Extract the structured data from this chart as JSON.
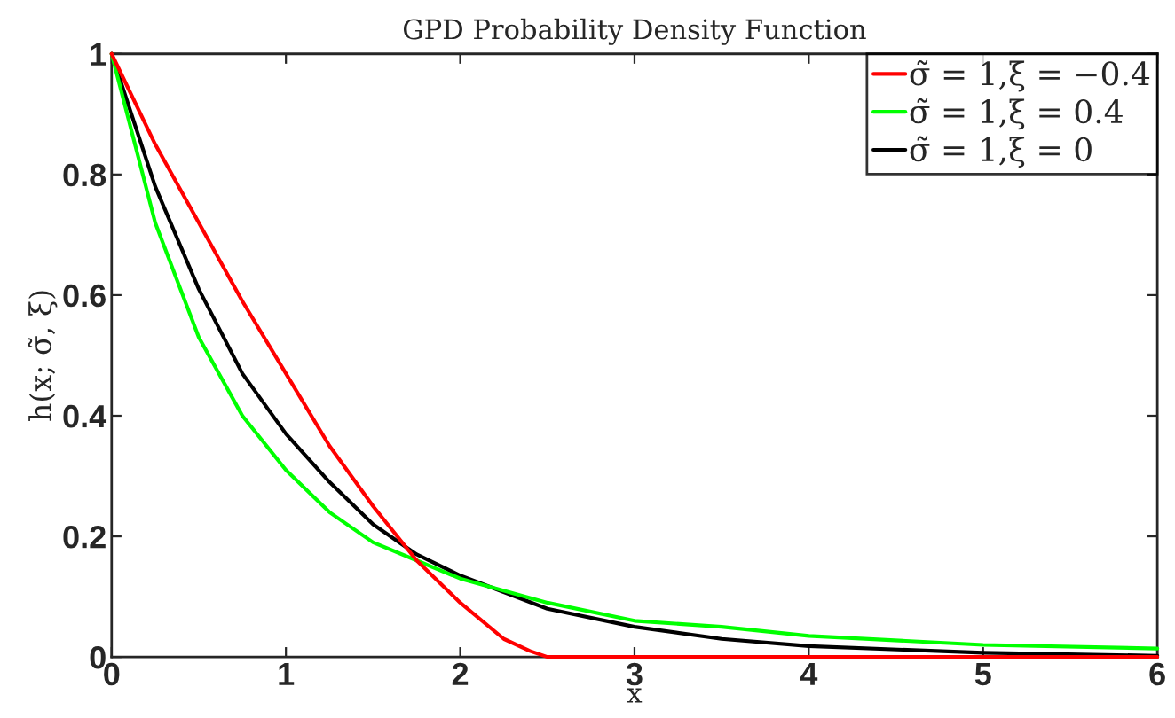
{
  "chart_data": {
    "type": "line",
    "title": "GPD Probability Density Function",
    "xlabel": "x",
    "ylabel": "h(x; σ̃, ξ)",
    "series": [
      {
        "name": "σ̃ = 1,ξ = −0.4",
        "color": "#ff0000",
        "x": [
          0,
          0.25,
          0.5,
          0.75,
          1,
          1.25,
          1.5,
          1.75,
          2,
          2.25,
          2.4,
          2.5,
          3,
          4,
          5,
          6
        ],
        "values": [
          1,
          0.85,
          0.72,
          0.59,
          0.47,
          0.35,
          0.25,
          0.16,
          0.09,
          0.03,
          0.01,
          0,
          0,
          0,
          0,
          0
        ]
      },
      {
        "name": "σ̃ = 1,ξ = 0.4",
        "color": "#00ff00",
        "x": [
          0,
          0.25,
          0.5,
          0.75,
          1,
          1.25,
          1.5,
          1.75,
          2,
          2.5,
          3,
          3.5,
          4,
          5,
          6
        ],
        "values": [
          1,
          0.72,
          0.53,
          0.4,
          0.31,
          0.24,
          0.19,
          0.16,
          0.13,
          0.09,
          0.06,
          0.05,
          0.035,
          0.02,
          0.014
        ]
      },
      {
        "name": "σ̃ = 1,ξ = 0",
        "color": "#000000",
        "x": [
          0,
          0.25,
          0.5,
          0.75,
          1,
          1.25,
          1.5,
          1.75,
          2,
          2.5,
          3,
          3.5,
          4,
          5,
          6
        ],
        "values": [
          1,
          0.78,
          0.61,
          0.47,
          0.37,
          0.29,
          0.22,
          0.17,
          0.135,
          0.08,
          0.05,
          0.03,
          0.018,
          0.007,
          0.002
        ]
      }
    ],
    "xlim": [
      0,
      6
    ],
    "xticks": [
      0,
      1,
      2,
      3,
      4,
      5,
      6
    ],
    "ylim": [
      0,
      1
    ],
    "yticks": [
      0,
      0.2,
      0.4,
      0.6,
      0.8,
      1
    ],
    "legend": "top right",
    "grid": false
  }
}
